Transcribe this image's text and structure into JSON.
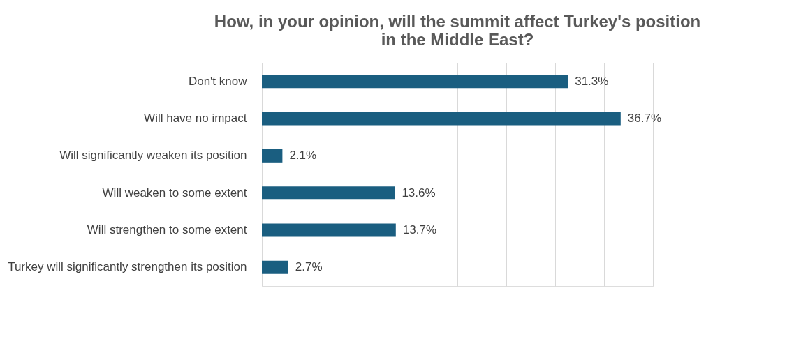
{
  "chart_data": {
    "type": "bar",
    "orientation": "horizontal",
    "title": "How, in your opinion, will the summit affect Turkey's position in the Middle East?",
    "categories": [
      "Don't know",
      "Will have no impact",
      "Will significantly weaken its position",
      "Will weaken to some extent",
      "Will strengthen to some extent",
      "Turkey will significantly strengthen its position"
    ],
    "values": [
      31.3,
      36.7,
      2.1,
      13.6,
      13.7,
      2.7
    ],
    "value_labels": [
      "31.3%",
      "36.7%",
      "2.1%",
      "13.6%",
      "13.7%",
      "2.7%"
    ],
    "color": "#1a5e80",
    "xlim": [
      0,
      40
    ],
    "xticks": [
      {
        "value": 0,
        "label": null
      },
      {
        "value": 5,
        "label": null
      },
      {
        "value": 10,
        "label": null
      },
      {
        "value": 15,
        "label": null
      },
      {
        "value": 20,
        "label": null
      },
      {
        "value": 25,
        "label": null
      },
      {
        "value": 30,
        "label": null
      },
      {
        "value": 35,
        "label": null
      },
      {
        "value": 40,
        "label": null
      }
    ],
    "tick_labels": "y",
    "grid": "x"
  }
}
